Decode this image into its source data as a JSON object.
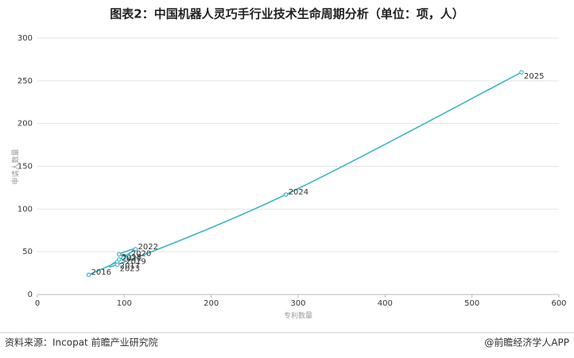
{
  "chart_data": {
    "type": "line",
    "title": "图表2：中国机器人灵巧手行业技术生命周期分析（单位：项，人）",
    "x_label": "专利数量",
    "y_label": "申请人数量",
    "labels": [
      "2016",
      "2017",
      "2018",
      "2019",
      "2020",
      "2021",
      "2022",
      "2023",
      "2024",
      "2025"
    ],
    "x": [
      59,
      92,
      94,
      99,
      105,
      94,
      113,
      92,
      286,
      557
    ],
    "values": [
      23,
      38,
      41,
      43,
      45,
      47,
      53,
      35,
      117,
      260
    ],
    "color": "#3cb5c6",
    "xlim": [
      0,
      600
    ],
    "xticks": [
      0,
      100,
      200,
      300,
      400,
      500,
      600
    ],
    "ylim": [
      0,
      300
    ],
    "yticks": [
      0,
      50,
      100,
      150,
      200,
      250,
      300
    ],
    "grid": true
  },
  "footer": {
    "source": "资料来源：Incopat 前瞻产业研究院",
    "credit": "@前瞻经济学人APP"
  }
}
